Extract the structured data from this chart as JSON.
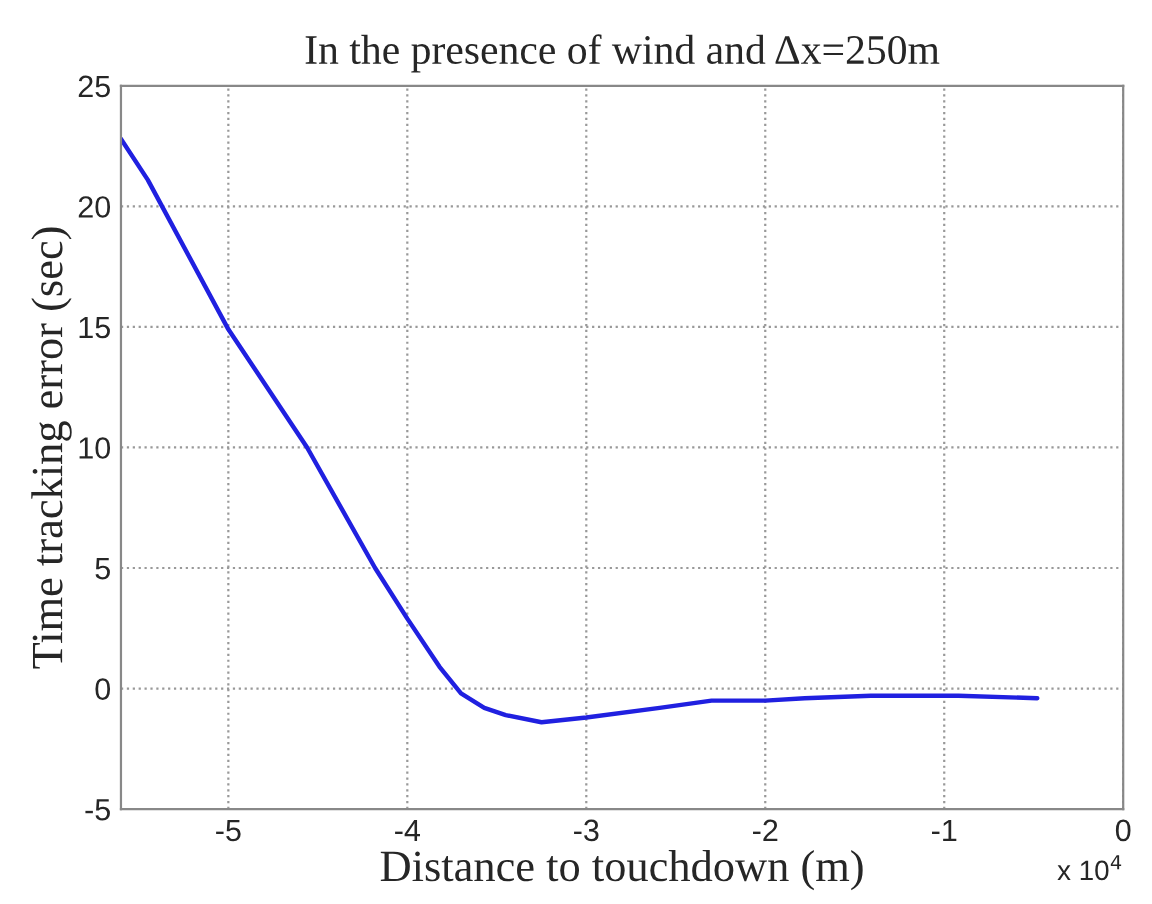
{
  "chart_data": {
    "type": "line",
    "title": "In the presence of wind and Δx=250m",
    "xlabel": "Distance to touchdown (m)",
    "ylabel": "Time tracking error (sec)",
    "x": [
      -5.6,
      -5.45,
      -5.0,
      -4.56,
      -4.18,
      -4.0,
      -3.82,
      -3.7,
      -3.57,
      -3.45,
      -3.25,
      -3.0,
      -2.59,
      -2.3,
      -2.0,
      -1.78,
      -1.41,
      -1.0,
      -0.92,
      -0.48
    ],
    "series": [
      {
        "color": "#2020e0",
        "values": [
          22.8,
          21.1,
          14.9,
          10.0,
          5.0,
          2.9,
          0.9,
          -0.2,
          -0.8,
          -1.1,
          -1.4,
          -1.2,
          -0.8,
          -0.5,
          -0.5,
          -0.4,
          -0.3,
          -0.3,
          -0.3,
          -0.4
        ]
      }
    ],
    "xlim": [
      -5.6,
      0
    ],
    "xticks": [
      -5,
      -4,
      -3,
      -2,
      -1,
      0
    ],
    "ylim": [
      -5,
      25
    ],
    "yticks": [
      -5,
      0,
      5,
      10,
      15,
      20,
      25
    ],
    "annotations": [
      "x 10$^{4}$"
    ],
    "grid": true,
    "legend": false,
    "marker": "none",
    "line_style": "solid"
  }
}
